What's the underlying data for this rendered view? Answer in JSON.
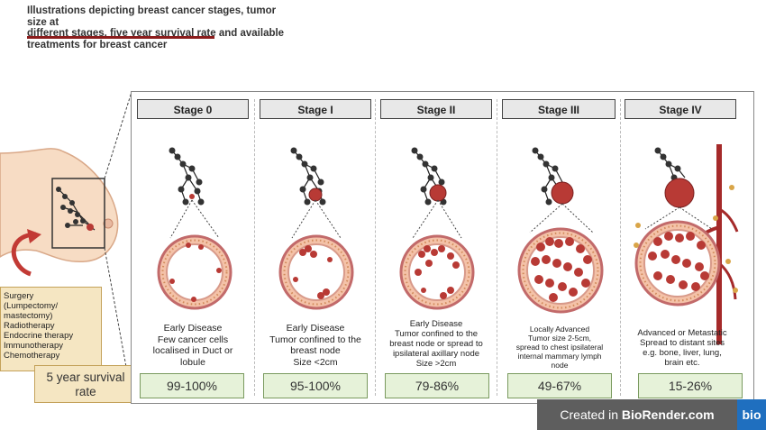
{
  "title": {
    "line1": "Illustrations depicting breast cancer stages, tumor size at",
    "line2": "different stages, five year survival rate and available",
    "line3": "treatments for breast cancer"
  },
  "treatments": [
    "Surgery",
    "(Lumpectomy/",
    "mastectomy)",
    "Radiotherapy",
    "Endocrine therapy",
    "Immunotherapy",
    "Chemotherapy"
  ],
  "survival_label": "5 year survival rate",
  "stages": [
    {
      "name": "Stage 0",
      "desc": [
        "Early Disease",
        "Few cancer cells",
        "localised in Duct or",
        "lobule"
      ],
      "survival": "99-100%"
    },
    {
      "name": "Stage I",
      "desc": [
        "Early Disease",
        "Tumor confined to the",
        "breast node",
        "Size <2cm"
      ],
      "survival": "95-100%"
    },
    {
      "name": "Stage II",
      "desc": [
        "Early Disease",
        "Tumor confined to the",
        "breast node or spread to",
        "ipsilateral axillary node",
        "Size >2cm"
      ],
      "survival": "79-86%"
    },
    {
      "name": "Stage III",
      "desc": [
        "Locally Advanced",
        "Tumor size 2-5cm,",
        "spread to chest ipsilateral",
        "internal mammary lymph",
        "node"
      ],
      "survival": "49-67%"
    },
    {
      "name": "Stage IV",
      "desc": [
        "Advanced or Metastatic",
        "Spread to distant sites",
        "e.g. bone, liver, lung,",
        "brain etc."
      ],
      "survival": "15-26%"
    }
  ],
  "badge": {
    "prefix": "Created in ",
    "brand": "BioRender.com",
    "logo": "bio"
  },
  "colors": {
    "accent": "#8b1c1c",
    "survival_fill": "#e6f2d9",
    "survival_border": "#7a9a5f",
    "label_fill": "#f5e6c2",
    "tumor": "#b83a35",
    "vessel": "#a52a2a"
  }
}
